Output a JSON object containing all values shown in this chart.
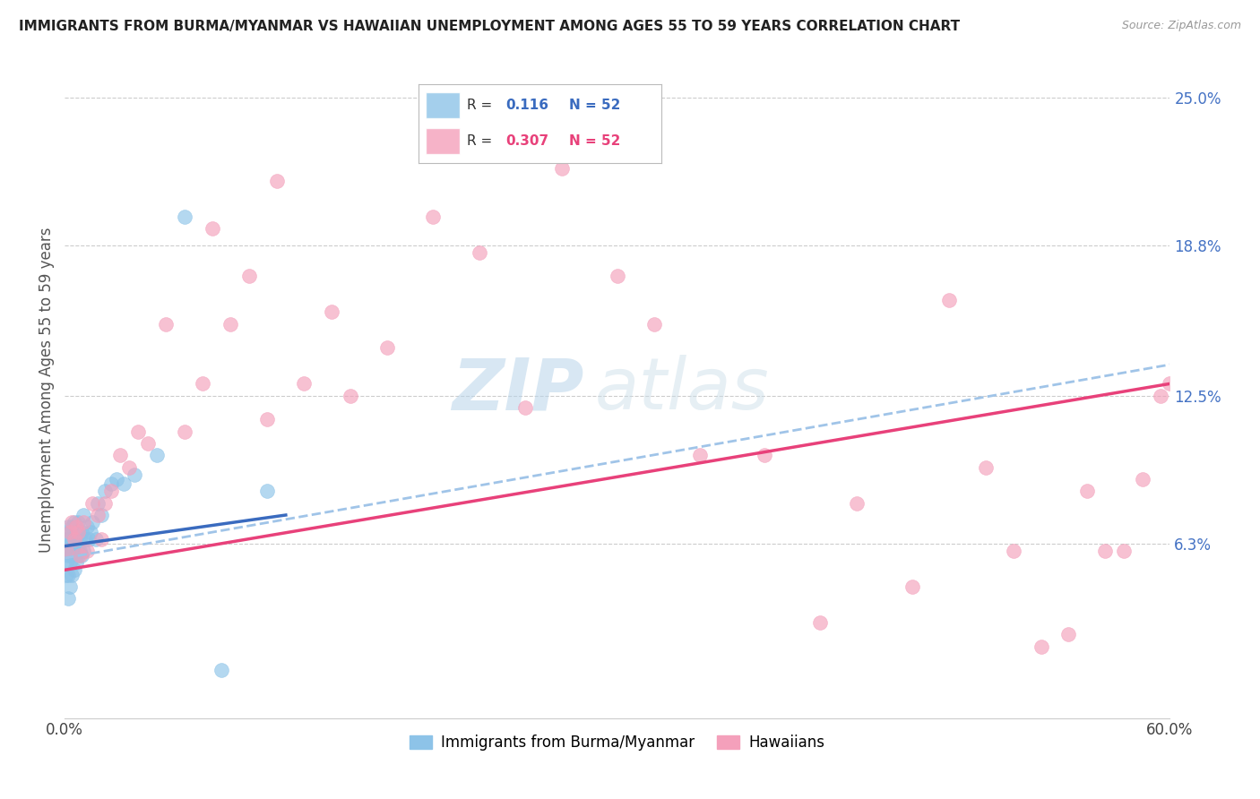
{
  "title": "IMMIGRANTS FROM BURMA/MYANMAR VS HAWAIIAN UNEMPLOYMENT AMONG AGES 55 TO 59 YEARS CORRELATION CHART",
  "source": "Source: ZipAtlas.com",
  "ylabel": "Unemployment Among Ages 55 to 59 years",
  "xlim": [
    0.0,
    0.6
  ],
  "ylim": [
    -0.01,
    0.265
  ],
  "plot_ylim": [
    0.0,
    0.25
  ],
  "right_ytick_color": "#4472c4",
  "blue_color": "#8dc3e8",
  "pink_color": "#f4a0bb",
  "trend_blue_color": "#3a6bbf",
  "trend_pink_color": "#e8417a",
  "trend_dash_color": "#a0c4e8",
  "watermark_color": "#d0e8f5",
  "blue_scatter_x": [
    0.001,
    0.001,
    0.001,
    0.001,
    0.002,
    0.002,
    0.002,
    0.002,
    0.002,
    0.002,
    0.003,
    0.003,
    0.003,
    0.003,
    0.003,
    0.004,
    0.004,
    0.004,
    0.004,
    0.005,
    0.005,
    0.005,
    0.005,
    0.006,
    0.006,
    0.006,
    0.007,
    0.007,
    0.007,
    0.008,
    0.008,
    0.009,
    0.009,
    0.01,
    0.01,
    0.011,
    0.012,
    0.013,
    0.014,
    0.015,
    0.017,
    0.018,
    0.02,
    0.022,
    0.025,
    0.028,
    0.032,
    0.038,
    0.05,
    0.065,
    0.085,
    0.11
  ],
  "blue_scatter_y": [
    0.05,
    0.055,
    0.06,
    0.065,
    0.04,
    0.05,
    0.058,
    0.062,
    0.065,
    0.07,
    0.045,
    0.055,
    0.06,
    0.063,
    0.068,
    0.05,
    0.058,
    0.062,
    0.07,
    0.052,
    0.06,
    0.065,
    0.072,
    0.055,
    0.06,
    0.068,
    0.058,
    0.062,
    0.072,
    0.06,
    0.065,
    0.058,
    0.068,
    0.06,
    0.075,
    0.065,
    0.07,
    0.065,
    0.068,
    0.072,
    0.065,
    0.08,
    0.075,
    0.085,
    0.088,
    0.09,
    0.088,
    0.092,
    0.1,
    0.2,
    0.01,
    0.085
  ],
  "pink_scatter_x": [
    0.001,
    0.003,
    0.004,
    0.005,
    0.006,
    0.007,
    0.008,
    0.01,
    0.012,
    0.015,
    0.018,
    0.02,
    0.022,
    0.025,
    0.03,
    0.035,
    0.04,
    0.045,
    0.055,
    0.065,
    0.075,
    0.08,
    0.09,
    0.1,
    0.11,
    0.115,
    0.13,
    0.145,
    0.155,
    0.175,
    0.2,
    0.225,
    0.25,
    0.27,
    0.3,
    0.32,
    0.345,
    0.38,
    0.41,
    0.43,
    0.46,
    0.48,
    0.5,
    0.515,
    0.53,
    0.545,
    0.555,
    0.565,
    0.575,
    0.585,
    0.595,
    0.6
  ],
  "pink_scatter_y": [
    0.06,
    0.068,
    0.072,
    0.065,
    0.07,
    0.068,
    0.058,
    0.072,
    0.06,
    0.08,
    0.075,
    0.065,
    0.08,
    0.085,
    0.1,
    0.095,
    0.11,
    0.105,
    0.155,
    0.11,
    0.13,
    0.195,
    0.155,
    0.175,
    0.115,
    0.215,
    0.13,
    0.16,
    0.125,
    0.145,
    0.2,
    0.185,
    0.12,
    0.22,
    0.175,
    0.155,
    0.1,
    0.1,
    0.03,
    0.08,
    0.045,
    0.165,
    0.095,
    0.06,
    0.02,
    0.025,
    0.085,
    0.06,
    0.06,
    0.09,
    0.125,
    0.13
  ],
  "blue_trend_x0": 0.0,
  "blue_trend_y0": 0.062,
  "blue_trend_x1": 0.12,
  "blue_trend_y1": 0.075,
  "pink_trend_x0": 0.0,
  "pink_trend_y0": 0.052,
  "pink_trend_x1": 0.6,
  "pink_trend_y1": 0.13,
  "dash_trend_x0": 0.0,
  "dash_trend_y0": 0.057,
  "dash_trend_x1": 0.6,
  "dash_trend_y1": 0.138
}
